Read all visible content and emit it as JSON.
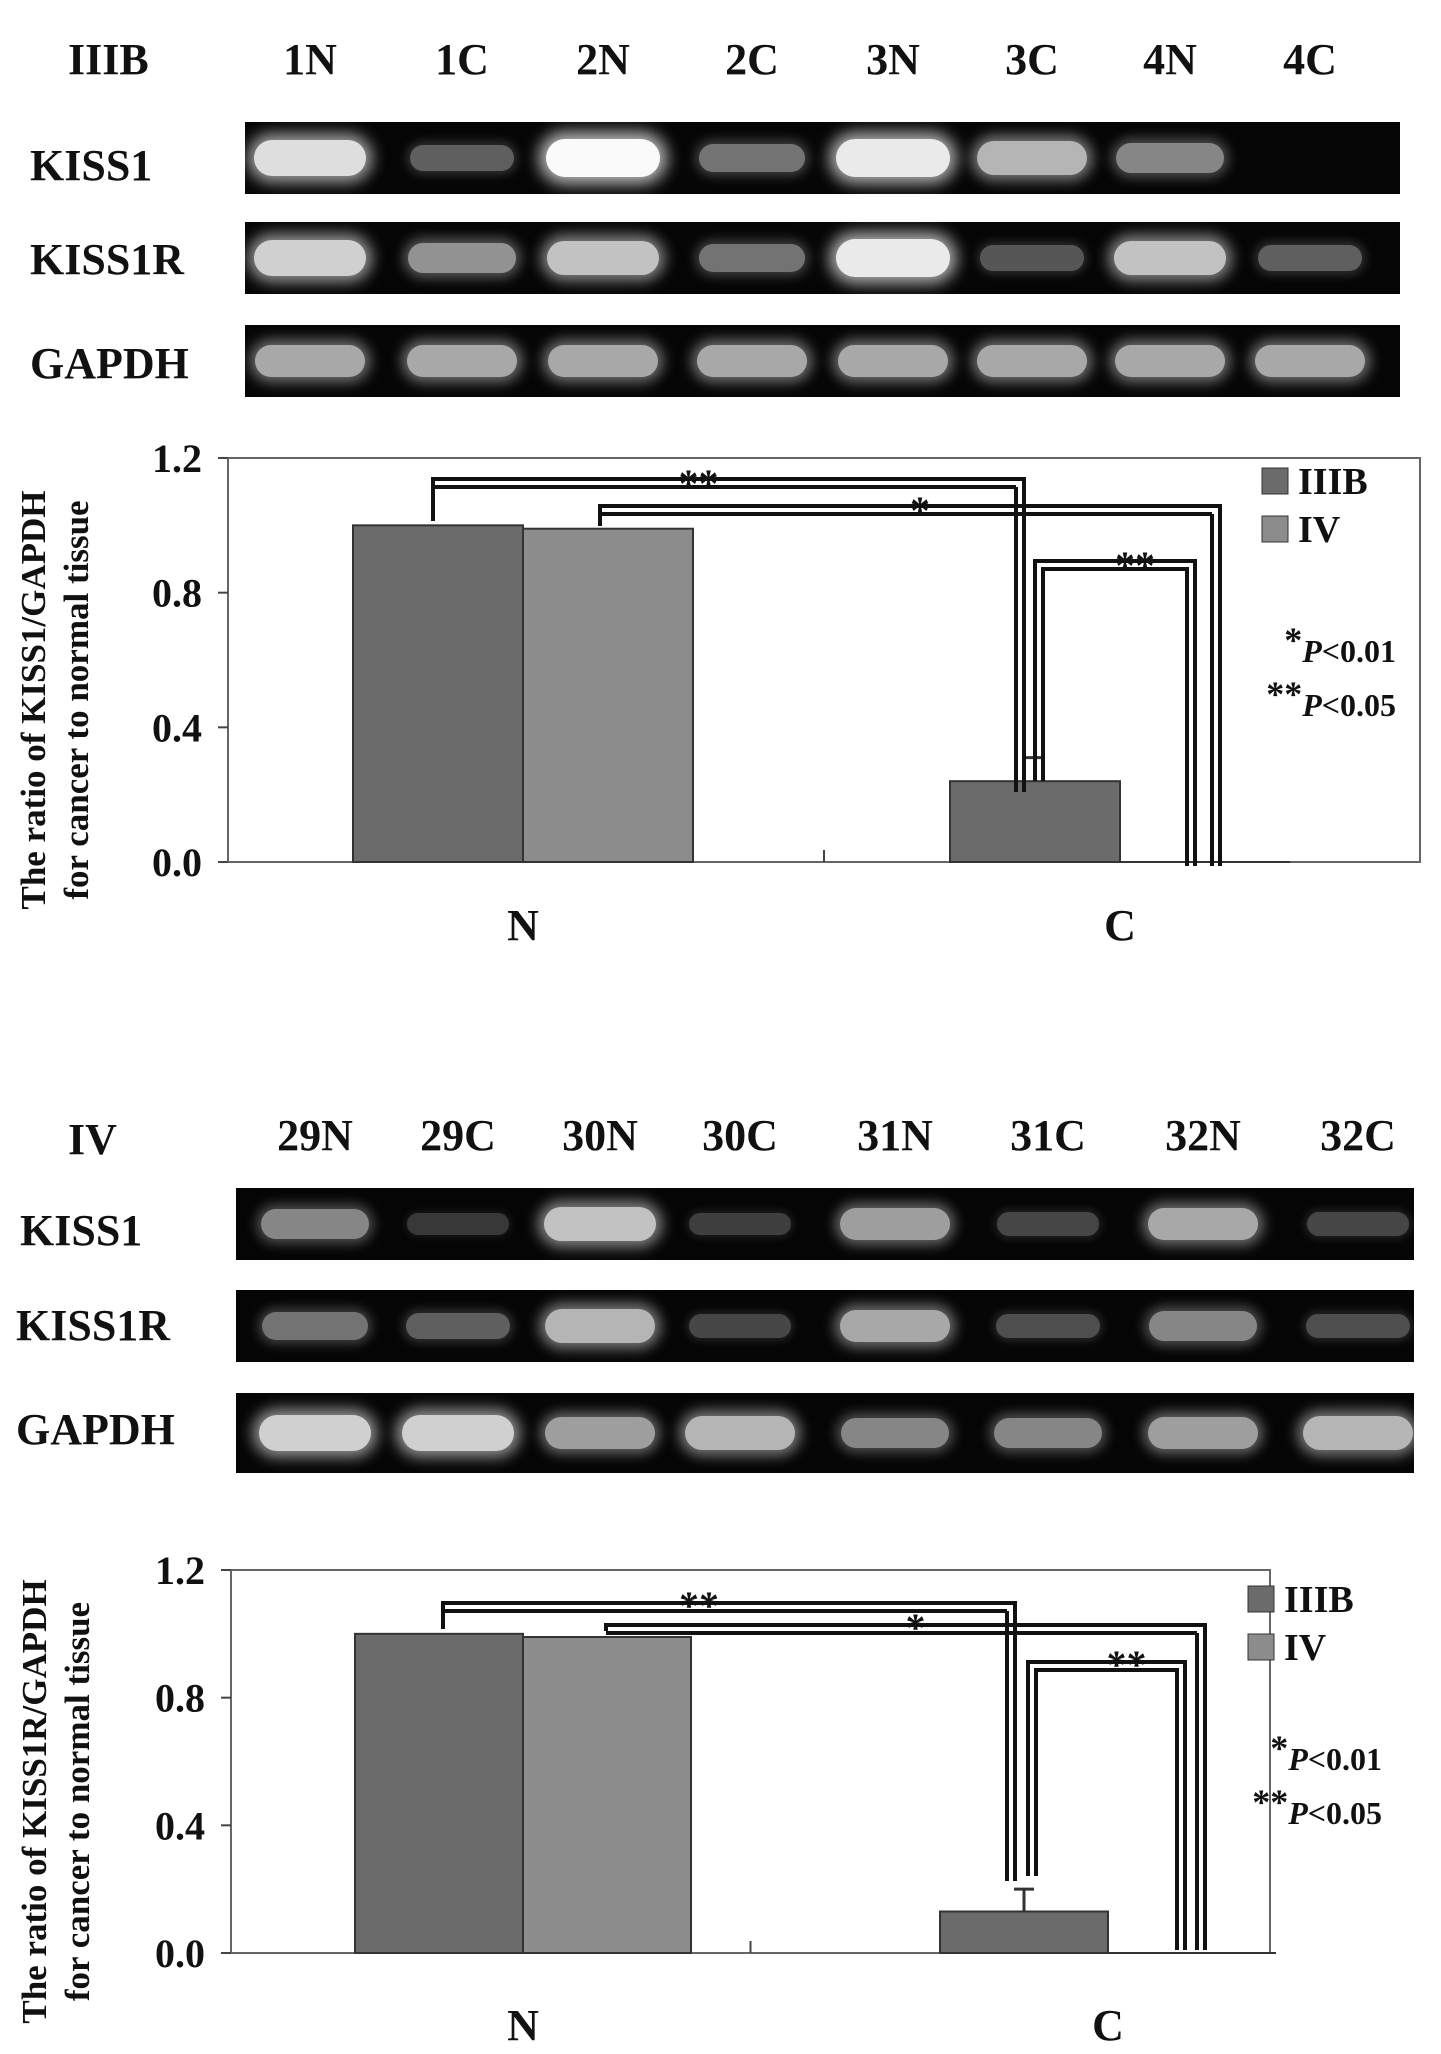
{
  "colors": {
    "IIIB": "#6b6b6b",
    "IV": "#8c8c8c",
    "gel_bg": "#050505"
  },
  "panels": [
    {
      "id": "top",
      "gel": {
        "title": "IIIB",
        "lanes": [
          "1N",
          "1C",
          "2N",
          "2C",
          "3N",
          "3C",
          "4N",
          "4C"
        ],
        "rows": [
          {
            "label": "KISS1",
            "intensity": [
              0.9,
              0.35,
              1.0,
              0.45,
              0.95,
              0.75,
              0.55,
              0.0
            ]
          },
          {
            "label": "KISS1R",
            "intensity": [
              0.85,
              0.6,
              0.8,
              0.45,
              0.95,
              0.3,
              0.8,
              0.35
            ]
          },
          {
            "label": "GAPDH",
            "intensity": [
              0.7,
              0.7,
              0.7,
              0.7,
              0.7,
              0.7,
              0.7,
              0.7
            ]
          }
        ]
      },
      "chart_data": {
        "type": "bar",
        "categories": [
          "N",
          "C"
        ],
        "series": [
          {
            "name": "IIIB",
            "values": [
              1.0,
              0.24
            ],
            "errors": [
              0,
              0.07
            ]
          },
          {
            "name": "IV",
            "values": [
              0.99,
              0.0
            ],
            "errors": [
              0,
              0
            ]
          }
        ],
        "ylabel_line1": "The ratio of KISS1/GAPDH",
        "ylabel_line2": "for cancer to normal tissue",
        "ylim": [
          0,
          1.2
        ],
        "yticks": [
          "0.0",
          "0.4",
          "0.8",
          "1.2"
        ],
        "legend_position": "top-right",
        "significance": [
          {
            "label": "**",
            "from": "N-IIIB",
            "to": "C-IIIB"
          },
          {
            "label": "*",
            "from": "N-IV",
            "to": "C-IV"
          },
          {
            "label": "**",
            "from": "C-IIIB",
            "to": "C-IV"
          }
        ],
        "notes": [
          {
            "stars": "*",
            "italic": "P",
            "rest": "<0.01"
          },
          {
            "stars": "**",
            "italic": "P",
            "rest": "<0.05"
          }
        ]
      }
    },
    {
      "id": "bottom",
      "gel": {
        "title": "IV",
        "lanes": [
          "29N",
          "29C",
          "30N",
          "30C",
          "31N",
          "31C",
          "32N",
          "32C"
        ],
        "rows": [
          {
            "label": "KISS1",
            "intensity": [
              0.55,
              0.1,
              0.8,
              0.15,
              0.65,
              0.2,
              0.7,
              0.2
            ]
          },
          {
            "label": "KISS1R",
            "intensity": [
              0.45,
              0.35,
              0.75,
              0.2,
              0.7,
              0.25,
              0.55,
              0.25
            ]
          },
          {
            "label": "GAPDH",
            "intensity": [
              0.85,
              0.85,
              0.65,
              0.75,
              0.55,
              0.55,
              0.65,
              0.75
            ]
          }
        ]
      },
      "chart_data": {
        "type": "bar",
        "categories": [
          "N",
          "C"
        ],
        "series": [
          {
            "name": "IIIB",
            "values": [
              1.0,
              0.13
            ],
            "errors": [
              0,
              0.07
            ]
          },
          {
            "name": "IV",
            "values": [
              0.99,
              0.0
            ],
            "errors": [
              0,
              0
            ]
          }
        ],
        "ylabel_line1": "The ratio of KISS1R/GAPDH",
        "ylabel_line2": "for cancer to normal tissue",
        "ylim": [
          0,
          1.2
        ],
        "yticks": [
          "0.0",
          "0.4",
          "0.8",
          "1.2"
        ],
        "legend_position": "top-right",
        "significance": [
          {
            "label": "**",
            "from": "N-IIIB",
            "to": "C-IIIB"
          },
          {
            "label": "*",
            "from": "N-IV",
            "to": "C-IV"
          },
          {
            "label": "**",
            "from": "C-IIIB",
            "to": "C-IV"
          }
        ],
        "notes": [
          {
            "stars": "*",
            "italic": "P",
            "rest": "<0.01"
          },
          {
            "stars": "**",
            "italic": "P",
            "rest": "<0.05"
          }
        ]
      }
    }
  ]
}
